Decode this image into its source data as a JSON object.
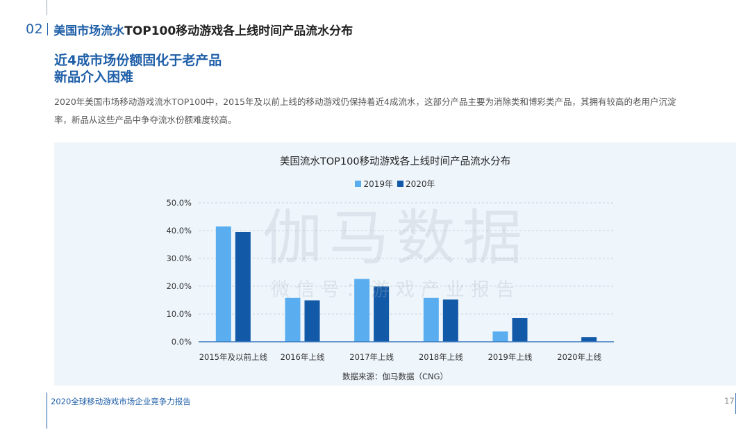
{
  "header": {
    "section_number": "02",
    "title_highlight": "美国市场流水",
    "title_rest": "TOP100移动游戏各上线时间产品流水分布"
  },
  "headline": {
    "line1": "近4成市场份额固化于老产品",
    "line2": "新品介入困难"
  },
  "body_text": "2020年美国市场移动游戏流水TOP100中，2015年及以前上线的移动游戏仍保持着近4成流水，这部分产品主要为消除类和博彩类产品，其拥有较高的老用户沉淀率，新品从这些产品中争夺流水份额难度较高。",
  "watermark": {
    "main": "伽马数据",
    "sub": "微信号：游戏产业报告"
  },
  "chart_data": {
    "type": "bar",
    "title": "美国流水TOP100移动游戏各上线时间产品流水分布",
    "categories": [
      "2015年及以前上线",
      "2016年上线",
      "2017年上线",
      "2018年上线",
      "2019年上线",
      "2020年上线"
    ],
    "series": [
      {
        "name": "2019年",
        "color": "#5aaef0",
        "values": [
          41.5,
          15.8,
          22.6,
          15.8,
          3.7,
          0
        ]
      },
      {
        "name": "2020年",
        "color": "#1259a8",
        "values": [
          39.5,
          14.9,
          19.9,
          15.2,
          8.5,
          1.7
        ]
      }
    ],
    "ylim": [
      0,
      50
    ],
    "yticks": [
      "0.0%",
      "10.0%",
      "20.0%",
      "30.0%",
      "40.0%",
      "50.0%"
    ],
    "ytick_values": [
      0,
      10,
      20,
      30,
      40,
      50
    ],
    "grid": true,
    "legend_position": "top-center",
    "source": "数据来源：伽马数据（CNG）"
  },
  "footer": {
    "report_title": "2020全球移动游戏市场企业竞争力报告",
    "page_number": "17"
  }
}
